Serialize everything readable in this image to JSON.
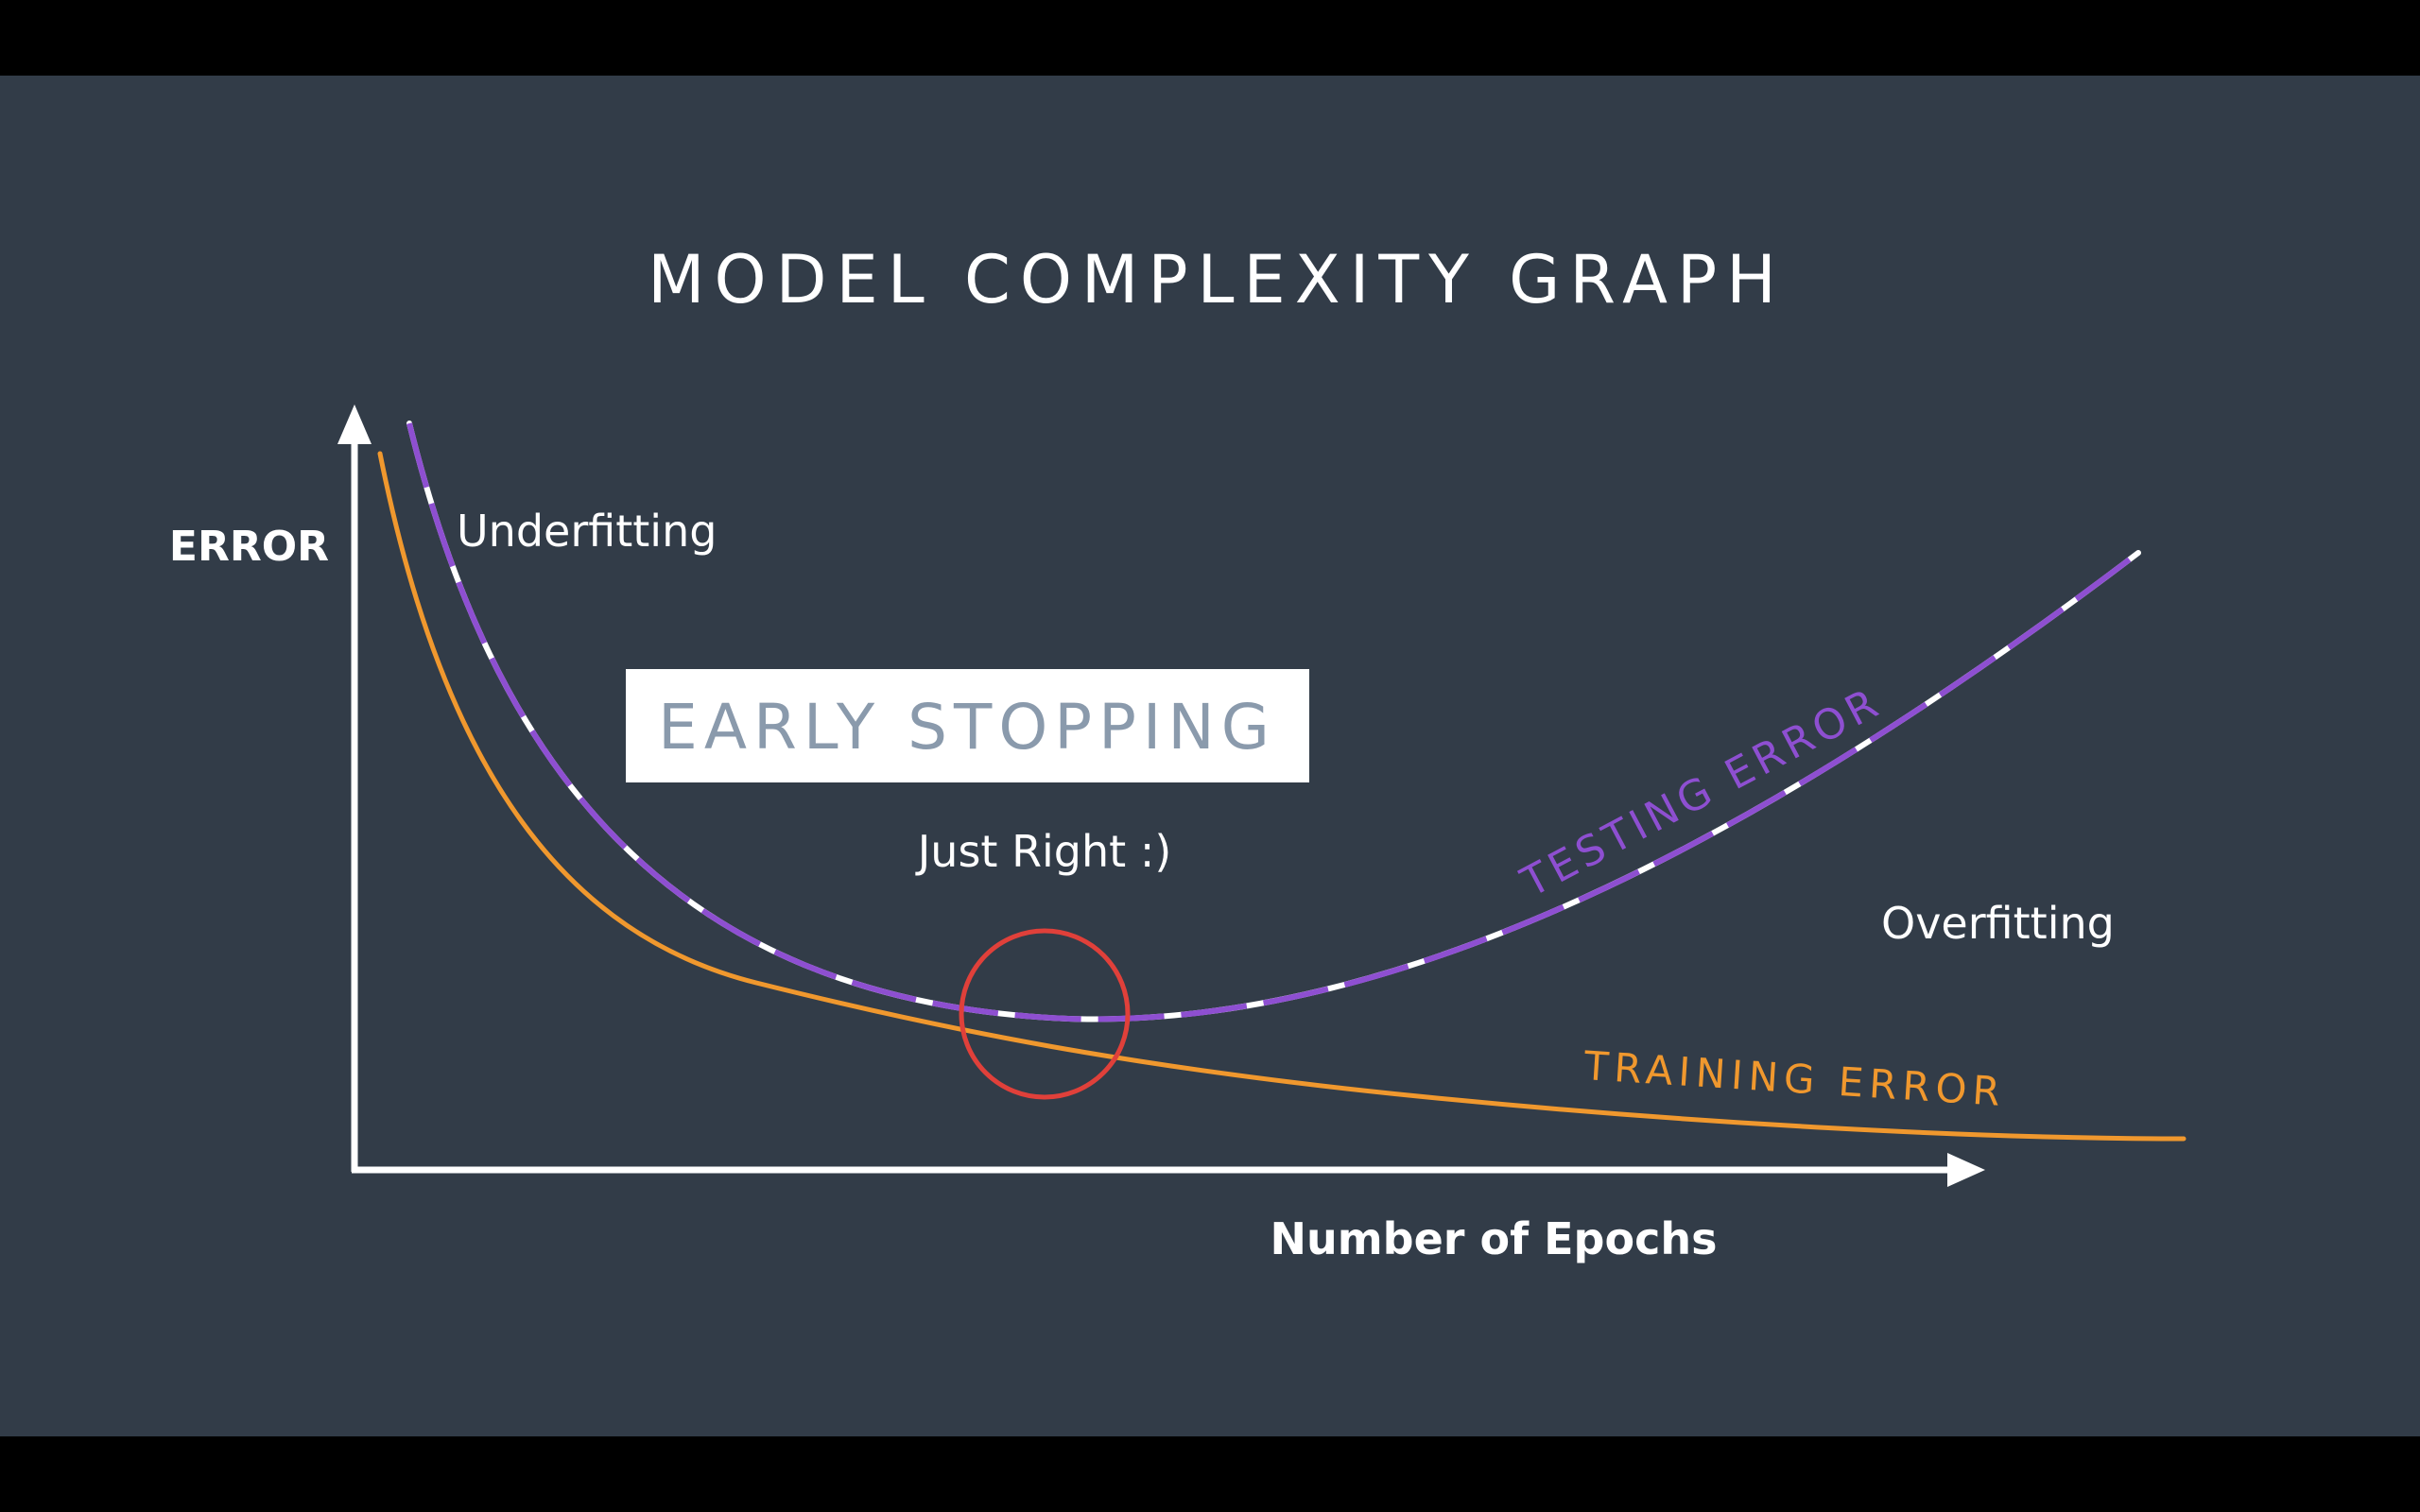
{
  "colors": {
    "letterbox": "#000000",
    "slide_background": "#323c48",
    "axis": "#ffffff",
    "text": "#ffffff",
    "testing_error": "#8e4fd1",
    "training_error": "#f0982e",
    "early_stop_marker": "#e0403a",
    "callout_background": "#ffffff",
    "callout_text": "#8a9aac"
  },
  "slide": {
    "title": "MODEL COMPLEXITY GRAPH",
    "y_axis_label": "ERROR",
    "x_axis_label": "Number of Epochs",
    "region_labels": {
      "underfitting": "Underfitting",
      "just_right": "Just Right :)",
      "overfitting": "Overfitting"
    },
    "callout": "EARLY STOPPING",
    "curve_labels": {
      "testing": "TESTING ERROR",
      "training": "TRAINING ERROR"
    }
  }
}
